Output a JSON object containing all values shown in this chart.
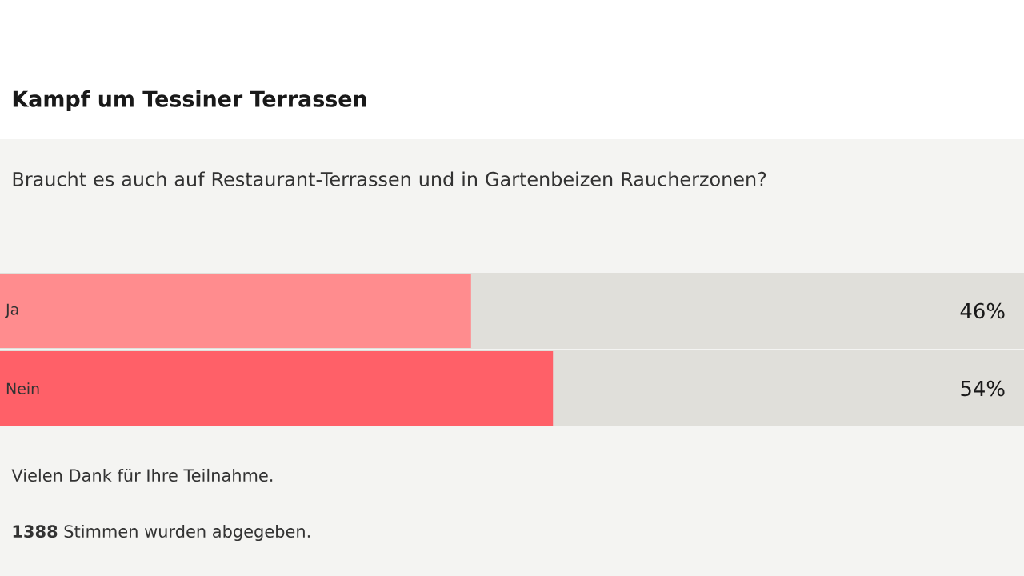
{
  "chart_data": {
    "type": "bar",
    "orientation": "horizontal",
    "title": "Kampf um Tessiner Terrassen",
    "subtitle": "Braucht es auch auf Restaurant-Terrassen und in Gartenbeizen Raucherzonen?",
    "categories": [
      "Ja",
      "Nein"
    ],
    "values": [
      46,
      54
    ],
    "colors": [
      "#ff8c8e",
      "#ff6068"
    ],
    "value_labels": [
      "46%",
      "54%"
    ],
    "xlim": [
      0,
      100
    ],
    "tick_labels": false,
    "annotations": [
      "Vielen Dank für Ihre Teilnahme.",
      "**1388**  Stimmen wurden abgegeben."
    ]
  }
}
